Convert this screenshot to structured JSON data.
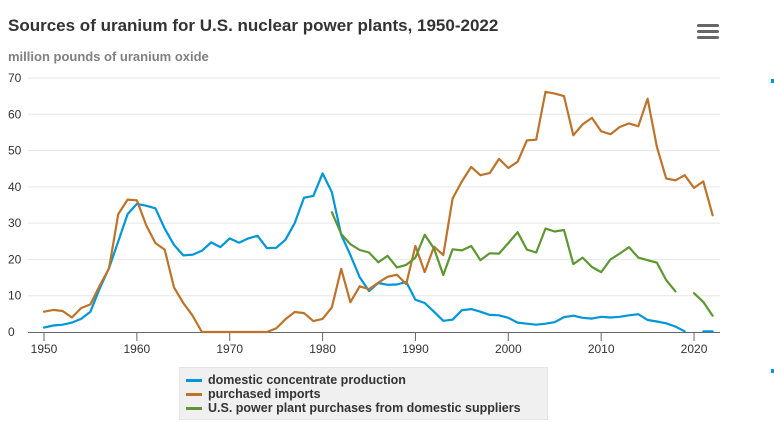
{
  "header": {
    "title": "Sources of uranium for U.S. nuclear power plants, 1950-2022",
    "subtitle": "million pounds of uranium oxide",
    "menu_icon": "hamburger-menu-icon"
  },
  "chart_data": {
    "type": "line",
    "title": "Sources of uranium for U.S. nuclear power plants, 1950-2022",
    "subtitle": "million pounds of uranium oxide",
    "xlabel": "",
    "ylabel": "million pounds of uranium oxide",
    "xlim": [
      1950,
      2022
    ],
    "ylim": [
      0,
      70
    ],
    "x_ticks": [
      "1950",
      "1960",
      "1970",
      "1980",
      "1990",
      "2000",
      "2010",
      "2020"
    ],
    "y_ticks": [
      "0",
      "10",
      "20",
      "30",
      "40",
      "50",
      "60",
      "70"
    ],
    "grid": "horizontal",
    "legend_position": "bottom-center",
    "x": [
      1950,
      1951,
      1952,
      1953,
      1954,
      1955,
      1956,
      1957,
      1958,
      1959,
      1960,
      1961,
      1962,
      1963,
      1964,
      1965,
      1966,
      1967,
      1968,
      1969,
      1970,
      1971,
      1972,
      1973,
      1974,
      1975,
      1976,
      1977,
      1978,
      1979,
      1980,
      1981,
      1982,
      1983,
      1984,
      1985,
      1986,
      1987,
      1988,
      1989,
      1990,
      1991,
      1992,
      1993,
      1994,
      1995,
      1996,
      1997,
      1998,
      1999,
      2000,
      2001,
      2002,
      2003,
      2004,
      2005,
      2006,
      2007,
      2008,
      2009,
      2010,
      2011,
      2012,
      2013,
      2014,
      2015,
      2016,
      2017,
      2018,
      2019,
      2020,
      2021,
      2022
    ],
    "series": [
      {
        "name": "domestic concentrate production",
        "color": "#0096d7",
        "values": [
          1.2,
          1.8,
          2.0,
          2.6,
          3.6,
          5.6,
          12.0,
          17.6,
          25.0,
          32.5,
          35.3,
          34.8,
          34.1,
          28.5,
          24.0,
          21.1,
          21.3,
          22.4,
          24.7,
          23.4,
          25.8,
          24.6,
          25.8,
          26.5,
          23.1,
          23.2,
          25.4,
          30.0,
          37.0,
          37.5,
          43.7,
          38.5,
          26.8,
          21.2,
          15.1,
          11.3,
          13.5,
          13.0,
          13.1,
          13.8,
          8.9,
          8.0,
          5.6,
          3.1,
          3.4,
          6.0,
          6.3,
          5.6,
          4.7,
          4.6,
          3.9,
          2.6,
          2.3,
          2.0,
          2.3,
          2.7,
          4.1,
          4.5,
          3.9,
          3.7,
          4.2,
          4.0,
          4.2,
          4.6,
          4.9,
          3.3,
          2.9,
          2.4,
          1.5,
          0.2,
          null,
          0.2,
          0.2
        ]
      },
      {
        "name": "purchased imports",
        "color": "#bd732a",
        "values": [
          5.6,
          6.1,
          5.8,
          4.0,
          6.6,
          7.6,
          12.8,
          17.5,
          32.5,
          36.5,
          36.3,
          29.5,
          24.5,
          22.7,
          12.3,
          8.0,
          4.5,
          0,
          0,
          0,
          0,
          0,
          0,
          0,
          0,
          1.0,
          3.5,
          5.5,
          5.2,
          3.0,
          3.6,
          6.8,
          17.4,
          8.2,
          12.6,
          11.8,
          13.6,
          15.2,
          15.8,
          13.2,
          23.7,
          16.5,
          23.5,
          21.2,
          36.8,
          41.5,
          45.5,
          43.2,
          43.8,
          47.7,
          45.2,
          46.9,
          52.8,
          53.0,
          66.2,
          65.7,
          65.0,
          54.2,
          57.2,
          59.0,
          55.3,
          54.5,
          56.5,
          57.5,
          56.7,
          64.3,
          51.0,
          42.3,
          41.8,
          43.2,
          39.7,
          41.5,
          32.2
        ]
      },
      {
        "name": "U.S. power plant purchases from domestic suppliers",
        "color": "#5d9732",
        "values": [
          null,
          null,
          null,
          null,
          null,
          null,
          null,
          null,
          null,
          null,
          null,
          null,
          null,
          null,
          null,
          null,
          null,
          null,
          null,
          null,
          null,
          null,
          null,
          null,
          null,
          null,
          null,
          null,
          null,
          null,
          null,
          33.0,
          27.0,
          24.2,
          22.6,
          21.9,
          19.2,
          21.0,
          17.8,
          18.5,
          20.5,
          26.8,
          23.0,
          15.7,
          22.8,
          22.5,
          23.7,
          19.8,
          21.7,
          21.6,
          24.5,
          27.5,
          22.7,
          21.9,
          28.5,
          27.7,
          28.1,
          18.7,
          20.5,
          17.9,
          16.5,
          20.0,
          21.6,
          23.4,
          20.5,
          19.8,
          19.1,
          14.3,
          11.2,
          null,
          10.7,
          8.3,
          4.5
        ]
      }
    ]
  }
}
